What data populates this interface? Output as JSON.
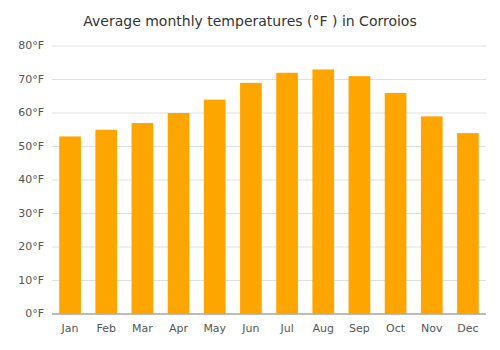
{
  "chart_data": {
    "type": "bar",
    "title": "Average monthly temperatures (°F ) in Corroios",
    "categories": [
      "Jan",
      "Feb",
      "Mar",
      "Apr",
      "May",
      "Jun",
      "Jul",
      "Aug",
      "Sep",
      "Oct",
      "Nov",
      "Dec"
    ],
    "values": [
      53,
      55,
      57,
      60,
      64,
      69,
      72,
      73,
      71,
      66,
      59,
      54
    ],
    "color": "#FFA500",
    "ylim": [
      0,
      80
    ],
    "yticks": [
      {
        "value": 0,
        "label": "0°F"
      },
      {
        "value": 10,
        "label": "10°F"
      },
      {
        "value": 20,
        "label": "20°F"
      },
      {
        "value": 30,
        "label": "30°F"
      },
      {
        "value": 40,
        "label": "40°F"
      },
      {
        "value": 50,
        "label": "50°F"
      },
      {
        "value": 60,
        "label": "60°F"
      },
      {
        "value": 70,
        "label": "70°F"
      },
      {
        "value": 80,
        "label": "80°F"
      }
    ],
    "grid": true
  }
}
